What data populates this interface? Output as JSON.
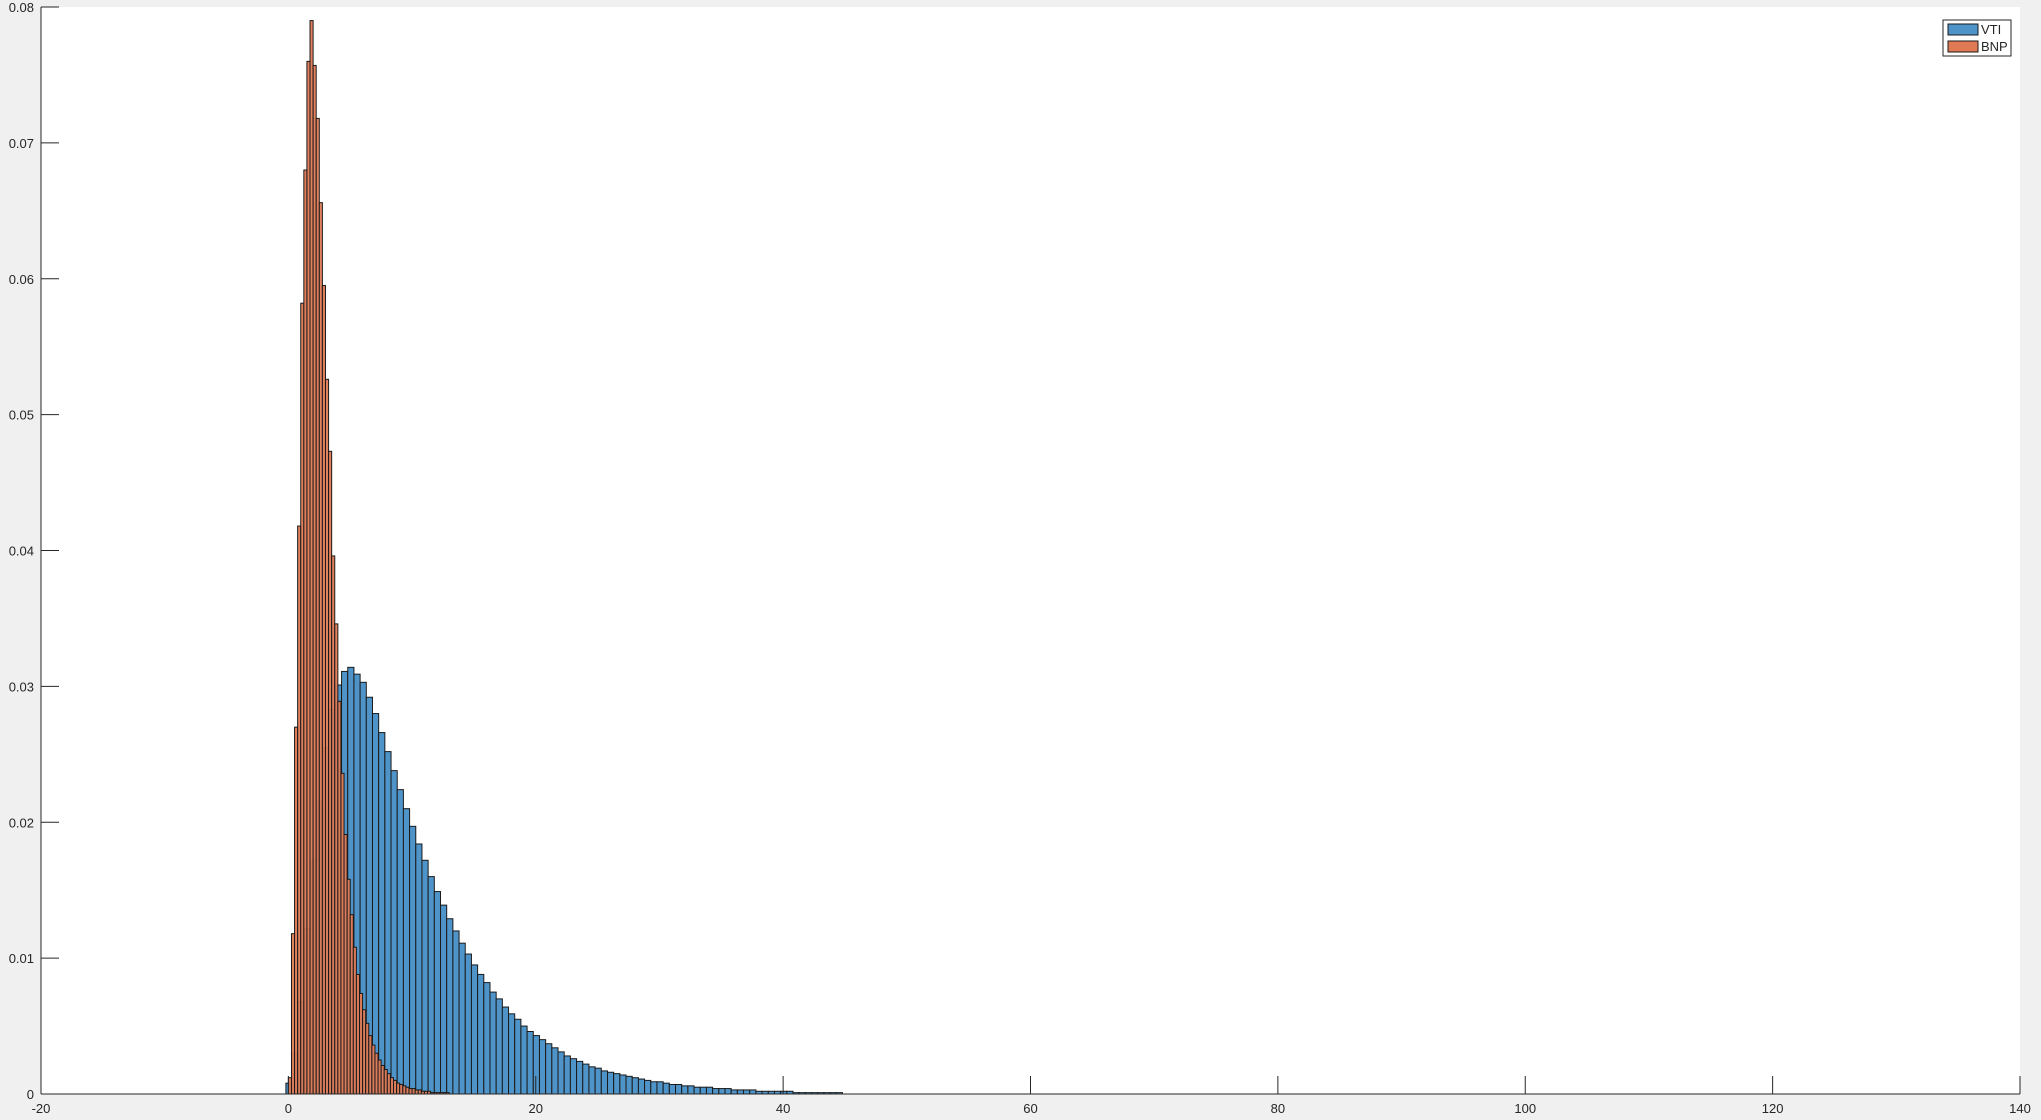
{
  "chart_data": {
    "type": "bar",
    "xlim": [
      -20,
      140
    ],
    "ylim": [
      0,
      0.08
    ],
    "x_ticks": [
      "-20",
      "0",
      "20",
      "40",
      "60",
      "80",
      "100",
      "120",
      "140"
    ],
    "y_ticks": [
      "0",
      "0.01",
      "0.02",
      "0.03",
      "0.04",
      "0.05",
      "0.06",
      "0.07",
      "0.08"
    ],
    "grid": false,
    "legend_position": "top-right",
    "series": [
      {
        "name": "VTI",
        "color": "#4f94c8",
        "bin_start": -0.2,
        "bin_width": 0.5,
        "values": [
          0.0008,
          0.003,
          0.0068,
          0.0122,
          0.0172,
          0.0215,
          0.0255,
          0.0283,
          0.0301,
          0.0311,
          0.0314,
          0.0309,
          0.0303,
          0.0292,
          0.028,
          0.0266,
          0.0252,
          0.0238,
          0.0224,
          0.021,
          0.0197,
          0.0184,
          0.0172,
          0.016,
          0.0149,
          0.0139,
          0.0129,
          0.012,
          0.0111,
          0.0103,
          0.0095,
          0.0088,
          0.0082,
          0.0075,
          0.007,
          0.0064,
          0.0059,
          0.0055,
          0.005,
          0.0046,
          0.0043,
          0.004,
          0.0037,
          0.0034,
          0.0031,
          0.0028,
          0.0026,
          0.0024,
          0.0022,
          0.002,
          0.0019,
          0.0017,
          0.0016,
          0.0015,
          0.0014,
          0.0013,
          0.0012,
          0.0011,
          0.001,
          0.0009,
          0.0009,
          0.0008,
          0.0007,
          0.0007,
          0.0006,
          0.0006,
          0.0005,
          0.0005,
          0.0005,
          0.0004,
          0.0004,
          0.0004,
          0.0003,
          0.0003,
          0.0003,
          0.0003,
          0.0002,
          0.0002,
          0.0002,
          0.0002,
          0.0002,
          0.0002,
          0.0001,
          0.0001,
          0.0001,
          0.0001,
          0.0001,
          0.0001,
          0.0001,
          0.0001
        ]
      },
      {
        "name": "BNP",
        "color": "#e07a55",
        "bin_start": 0,
        "bin_width": 0.25,
        "values": [
          0.0012,
          0.0118,
          0.027,
          0.0418,
          0.0582,
          0.068,
          0.076,
          0.079,
          0.0757,
          0.0718,
          0.0656,
          0.0595,
          0.0526,
          0.0473,
          0.0396,
          0.0346,
          0.0289,
          0.0236,
          0.0191,
          0.0158,
          0.0132,
          0.0108,
          0.0088,
          0.0074,
          0.0062,
          0.0052,
          0.0043,
          0.0036,
          0.003,
          0.0025,
          0.0021,
          0.0018,
          0.0015,
          0.0012,
          0.001,
          0.0008,
          0.0007,
          0.0006,
          0.0005,
          0.0004,
          0.0004,
          0.0003,
          0.0003,
          0.0002,
          0.0002,
          0.0002,
          0.0001,
          0.0001,
          0.0001,
          0.0001,
          0.0001,
          0.0001
        ]
      }
    ]
  }
}
